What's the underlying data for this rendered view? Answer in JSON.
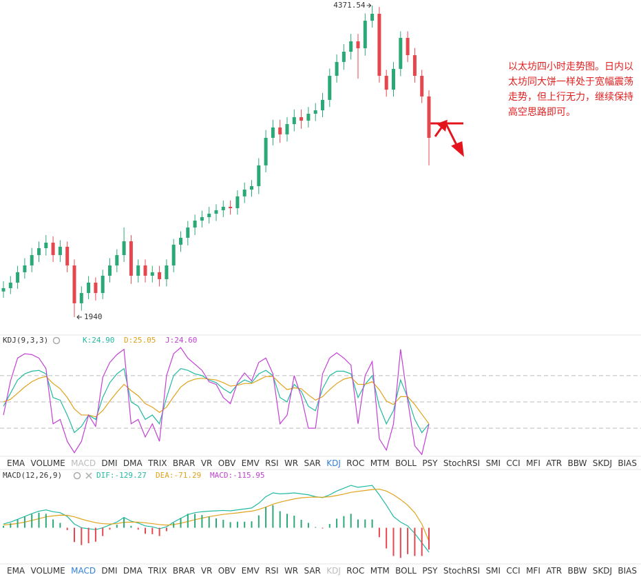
{
  "chart_data": [
    {
      "type": "candlestick",
      "up_color": "#2aa876",
      "down_color": "#e4474d",
      "open": [
        2140,
        2166,
        2209,
        2290,
        2343,
        2424,
        2478,
        2521,
        2424,
        2489,
        2343,
        2048,
        2128,
        2209,
        2128,
        2263,
        2343,
        2424,
        2532,
        2263,
        2343,
        2263,
        2290,
        2236,
        2343,
        2505,
        2559,
        2639,
        2693,
        2720,
        2747,
        2774,
        2801,
        2790,
        2882,
        2935,
        2962,
        3124,
        3339,
        3420,
        3366,
        3446,
        3500,
        3473,
        3527,
        3554,
        3635,
        3823,
        3931,
        4011,
        4092,
        4038,
        4253,
        4307,
        3823,
        3715,
        3877,
        4119,
        3984,
        3823,
        3662
      ],
      "high": [
        2220,
        2260,
        2340,
        2400,
        2480,
        2530,
        2580,
        2570,
        2540,
        2530,
        2390,
        2180,
        2260,
        2250,
        2310,
        2400,
        2470,
        2640,
        2580,
        2390,
        2390,
        2340,
        2340,
        2390,
        2550,
        2610,
        2690,
        2740,
        2770,
        2800,
        2820,
        2850,
        2850,
        2930,
        2990,
        3010,
        3180,
        3400,
        3480,
        3480,
        3500,
        3560,
        3560,
        3580,
        3610,
        3690,
        3880,
        3990,
        4070,
        4150,
        4150,
        4310,
        4371.54,
        4360,
        3870,
        3930,
        4170,
        4170,
        4040,
        3870,
        3710
      ],
      "low": [
        2090,
        2120,
        2160,
        2240,
        2290,
        2370,
        2420,
        2370,
        2370,
        2290,
        1940,
        1990,
        2080,
        2070,
        2080,
        2210,
        2290,
        2370,
        2200,
        2210,
        2210,
        2210,
        2180,
        2180,
        2290,
        2450,
        2500,
        2580,
        2640,
        2670,
        2690,
        2720,
        2740,
        2740,
        2830,
        2880,
        2900,
        3070,
        3280,
        3300,
        3310,
        3390,
        3410,
        3420,
        3470,
        3500,
        3580,
        3770,
        3870,
        3950,
        3800,
        3980,
        4200,
        3770,
        3660,
        3660,
        3820,
        3930,
        3770,
        3610,
        3124
      ],
      "close": [
        2166,
        2209,
        2290,
        2343,
        2424,
        2478,
        2521,
        2424,
        2489,
        2343,
        2048,
        2128,
        2209,
        2128,
        2263,
        2343,
        2424,
        2532,
        2263,
        2343,
        2263,
        2290,
        2236,
        2343,
        2505,
        2559,
        2639,
        2693,
        2720,
        2747,
        2774,
        2801,
        2790,
        2882,
        2935,
        2962,
        3124,
        3339,
        3420,
        3366,
        3446,
        3500,
        3473,
        3527,
        3554,
        3635,
        3823,
        3931,
        4011,
        4092,
        4038,
        4253,
        4307,
        3823,
        3715,
        3877,
        4119,
        3984,
        3823,
        3662,
        3339
      ]
    },
    {
      "type": "line",
      "title": "KDJ(9,3,3)",
      "ylim": [
        -20,
        120
      ],
      "levels": [
        20,
        50,
        80
      ],
      "grid": true,
      "series": [
        {
          "name": "K:24.90",
          "color": "#20b9a0",
          "values": [
            45,
            60,
            75,
            82,
            85,
            86,
            82,
            55,
            52,
            35,
            15,
            22,
            35,
            30,
            55,
            72,
            82,
            88,
            50,
            45,
            30,
            35,
            25,
            55,
            80,
            88,
            86,
            82,
            80,
            75,
            72,
            65,
            60,
            70,
            75,
            72,
            82,
            86,
            80,
            55,
            50,
            70,
            62,
            45,
            40,
            65,
            80,
            85,
            85,
            82,
            55,
            70,
            80,
            45,
            25,
            40,
            75,
            55,
            30,
            15,
            24.9
          ]
        },
        {
          "name": "D:25.05",
          "color": "#e0a21a",
          "values": [
            50,
            53,
            60,
            67,
            73,
            77,
            79,
            71,
            65,
            55,
            42,
            35,
            35,
            33,
            40,
            51,
            61,
            70,
            63,
            57,
            48,
            44,
            38,
            44,
            56,
            67,
            73,
            76,
            77,
            76,
            75,
            72,
            68,
            69,
            71,
            71,
            75,
            79,
            79,
            71,
            64,
            66,
            65,
            58,
            52,
            56,
            64,
            71,
            76,
            78,
            70,
            70,
            73,
            64,
            51,
            47,
            56,
            56,
            47,
            36,
            25.05
          ]
        },
        {
          "name": "J:24.60",
          "color": "#c23fd4",
          "values": [
            35,
            74,
            100,
            105,
            104,
            100,
            88,
            25,
            30,
            5,
            -8,
            5,
            35,
            22,
            78,
            95,
            104,
            110,
            25,
            30,
            10,
            25,
            5,
            80,
            105,
            112,
            100,
            93,
            86,
            73,
            70,
            55,
            48,
            72,
            83,
            74,
            95,
            100,
            82,
            25,
            35,
            80,
            56,
            20,
            20,
            82,
            100,
            106,
            100,
            92,
            25,
            80,
            96,
            8,
            -5,
            25,
            110,
            52,
            0,
            -10,
            24.6
          ]
        }
      ]
    },
    {
      "type": "macd",
      "title": "MACD(12,26,9)",
      "ylim": [
        -170,
        240
      ],
      "positive_color": "#2aa876",
      "negative_color": "#e4474d",
      "series": [
        {
          "name": "DIF:-129.27",
          "color": "#20b9a0",
          "values": [
            20,
            30,
            45,
            60,
            75,
            88,
            95,
            85,
            80,
            60,
            20,
            0,
            -5,
            -10,
            0,
            15,
            30,
            55,
            35,
            25,
            10,
            5,
            -5,
            5,
            30,
            50,
            70,
            80,
            85,
            88,
            90,
            92,
            90,
            95,
            100,
            105,
            130,
            165,
            185,
            180,
            182,
            185,
            180,
            175,
            165,
            160,
            175,
            195,
            210,
            225,
            215,
            220,
            225,
            175,
            120,
            60,
            30,
            10,
            -30,
            -80,
            -129.27
          ]
        },
        {
          "name": "DEA:-71.29",
          "color": "#e0a21a",
          "values": [
            15,
            18,
            23,
            30,
            39,
            48,
            58,
            63,
            67,
            66,
            58,
            46,
            36,
            27,
            22,
            20,
            22,
            29,
            30,
            30,
            26,
            22,
            17,
            14,
            17,
            24,
            33,
            43,
            51,
            59,
            65,
            71,
            75,
            79,
            84,
            88,
            97,
            110,
            125,
            136,
            145,
            153,
            159,
            162,
            163,
            162,
            165,
            171,
            179,
            188,
            193,
            198,
            203,
            205,
            195,
            175,
            150,
            120,
            80,
            20,
            -71.29
          ]
        },
        {
          "name": "MACD:-115.95",
          "color": "#c23fd4",
          "bars": true,
          "values": [
            10,
            24,
            44,
            60,
            72,
            80,
            74,
            44,
            26,
            -12,
            -76,
            -92,
            -82,
            -74,
            -44,
            -10,
            16,
            52,
            10,
            -10,
            -32,
            -34,
            -44,
            -18,
            26,
            52,
            74,
            74,
            68,
            58,
            50,
            42,
            30,
            32,
            32,
            34,
            66,
            110,
            120,
            88,
            74,
            64,
            42,
            26,
            4,
            -4,
            20,
            48,
            62,
            74,
            44,
            44,
            44,
            -50,
            -110,
            -150,
            -160,
            -140,
            -150,
            -150,
            -115.95
          ]
        }
      ]
    }
  ],
  "annotation": "以太坊四小时走势图。日内以太坊同大饼一样处于宽幅震荡走势，但上行无力，继续保持高空思路即可。",
  "indicator_tabs": [
    "EMA",
    "VOLUME",
    "MACD",
    "DMI",
    "DMA",
    "TRIX",
    "BRAR",
    "VR",
    "OBV",
    "EMV",
    "RSI",
    "WR",
    "SAR",
    "KDJ",
    "ROC",
    "MTM",
    "BOLL",
    "PSY",
    "StochRSI",
    "SMI",
    "CCI",
    "MFI",
    "ATR",
    "BBW",
    "SKDJ",
    "BIAS"
  ],
  "tab_rows": [
    {
      "active": "KDJ",
      "disabled": "MACD"
    },
    {
      "active": "MACD",
      "disabled": "KDJ"
    }
  ]
}
